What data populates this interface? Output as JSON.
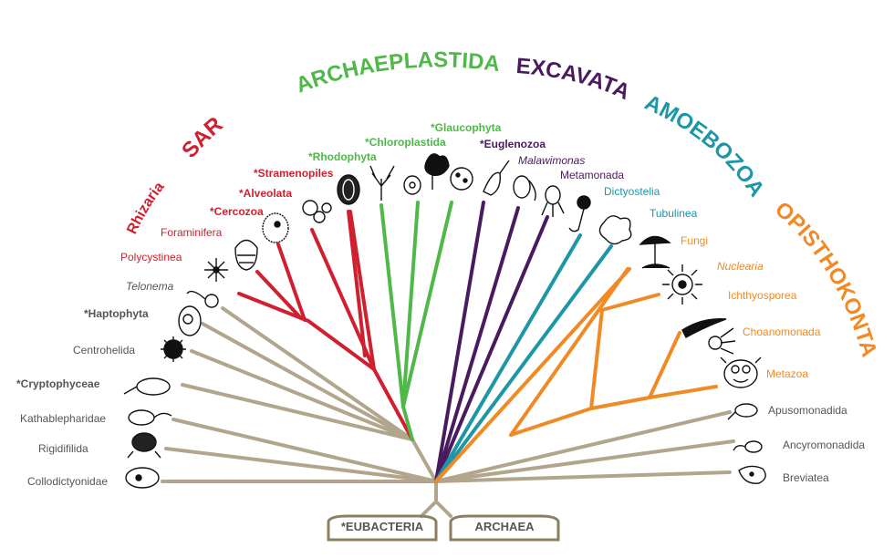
{
  "colors": {
    "rhizaria": "#d0202f",
    "archaeplastida": "#4fb848",
    "excavata": "#4a1a5e",
    "amoebozoa": "#1d96a6",
    "opisthokonta": "#f08a24",
    "basal": "#b1a68c",
    "basal_text": "#555555",
    "box": "#8a7f5e"
  },
  "supergroups": {
    "sar": "SAR",
    "rhizaria": "Rhizaria",
    "archaeplastida": "ARCHAEPLASTIDA",
    "excavata": "EXCAVATA",
    "amoebozoa": "AMOEBOZOA",
    "opisthokonta": "OPISTHOKONTA"
  },
  "taxa": {
    "collodictyonidae": "Collodictyonidae",
    "rigidifilida": "Rigidifilida",
    "kathablepharidae": "Kathablepharidae",
    "cryptophyceae": "*Cryptophyceae",
    "centrohelida": "Centrohelida",
    "haptophyta": "*Haptophyta",
    "telonema": "Telonema",
    "polycystinea": "Polycystinea",
    "foraminifera": "Foraminifera",
    "cercozoa": "*Cercozoa",
    "alveolata": "*Alveolata",
    "stramenopiles": "*Stramenopiles",
    "rhodophyta": "*Rhodophyta",
    "chloroplastida": "*Chloroplastida",
    "glaucophyta": "*Glaucophyta",
    "euglenozoa": "*Euglenozoa",
    "malawimonas": "Malawimonas",
    "metamonada": "Metamonada",
    "dictyostelia": "Dictyostelia",
    "tubulinea": "Tubulinea",
    "fungi": "Fungi",
    "nuclearia": "Nuclearia",
    "ichthyosporea": "Ichthyosporea",
    "choanomonada": "Choanomonada",
    "metazoa": "Metazoa",
    "apusomonadida": "Apusomonadida",
    "ancyromonadida": "Ancyromonadida",
    "breviatea": "Breviatea"
  },
  "root": {
    "eubacteria": "*EUBACTERIA",
    "archaea": "ARCHAEA"
  }
}
